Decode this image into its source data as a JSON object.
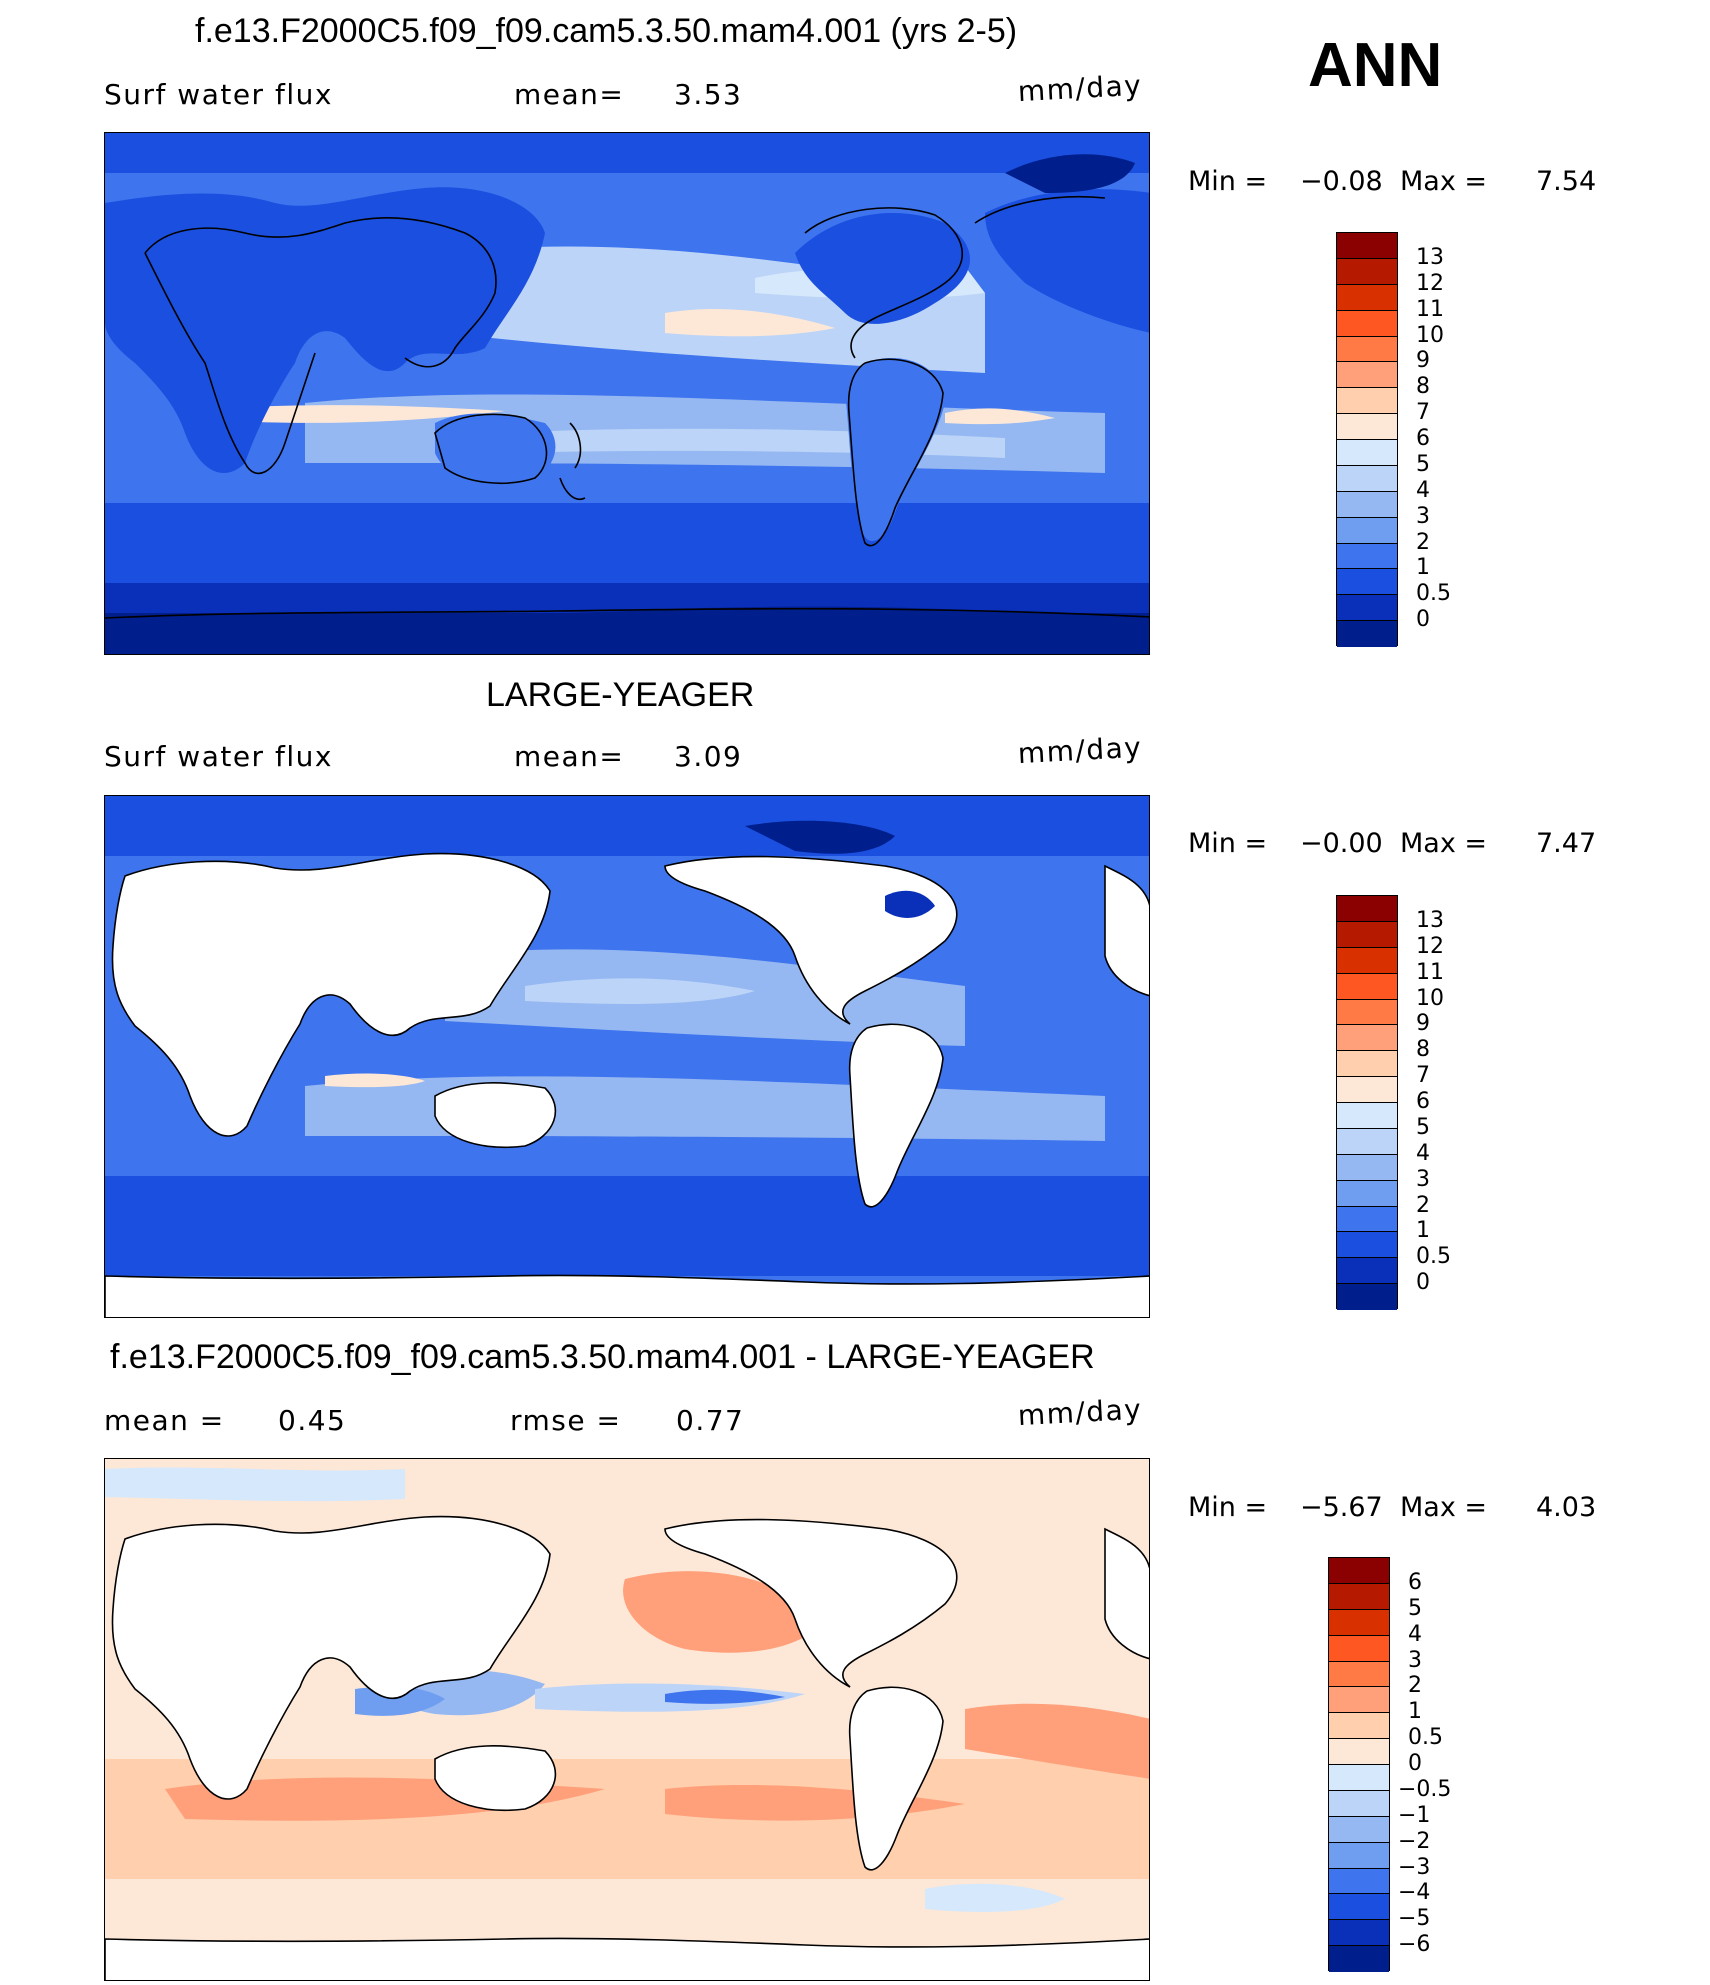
{
  "season": "ANN",
  "panels": [
    {
      "title": "f.e13.F2000C5.f09_f09.cam5.3.50.mam4.001 (yrs 2-5)",
      "left_label": "Surf water flux",
      "stat1_label": "mean=",
      "stat1_value": "3.53",
      "stat2_label": "",
      "stat2_value": "",
      "units": "mm/day",
      "min_label": "Min =",
      "min_value": "−0.08",
      "max_label": "Max =",
      "max_value": "7.54",
      "colorbar_levels": [
        "13",
        "12",
        "11",
        "10",
        "9",
        "8",
        "7",
        "6",
        "5",
        "4",
        "3",
        "2",
        "1",
        "0.5",
        "0"
      ],
      "colorbar_colors": [
        "#8b0000",
        "#b51a00",
        "#d93000",
        "#ff5722",
        "#ff7a45",
        "#ffa07a",
        "#ffcfae",
        "#fde8d8",
        "#d6e8fb",
        "#bcd4f7",
        "#95b8f2",
        "#6f9df0",
        "#3e74ee",
        "#1a4fe0",
        "#0a2fb8",
        "#001e8c"
      ],
      "ocean_land": "filled"
    },
    {
      "title": "LARGE-YEAGER",
      "left_label": "Surf water flux",
      "stat1_label": "mean=",
      "stat1_value": "3.09",
      "stat2_label": "",
      "stat2_value": "",
      "units": "mm/day",
      "min_label": "Min =",
      "min_value": "−0.00",
      "max_label": "Max =",
      "max_value": "7.47",
      "colorbar_levels": [
        "13",
        "12",
        "11",
        "10",
        "9",
        "8",
        "7",
        "6",
        "5",
        "4",
        "3",
        "2",
        "1",
        "0.5",
        "0"
      ],
      "colorbar_colors": [
        "#8b0000",
        "#b51a00",
        "#d93000",
        "#ff5722",
        "#ff7a45",
        "#ffa07a",
        "#ffcfae",
        "#fde8d8",
        "#d6e8fb",
        "#bcd4f7",
        "#95b8f2",
        "#6f9df0",
        "#3e74ee",
        "#1a4fe0",
        "#0a2fb8",
        "#001e8c"
      ],
      "ocean_land": "ocean-only"
    },
    {
      "title": "f.e13.F2000C5.f09_f09.cam5.3.50.mam4.001 - LARGE-YEAGER",
      "left_label": "",
      "stat1_label": "mean =",
      "stat1_value": "0.45",
      "stat2_label": "rmse =",
      "stat2_value": "0.77",
      "units": "mm/day",
      "min_label": "Min =",
      "min_value": "−5.67",
      "max_label": "Max =",
      "max_value": "4.03",
      "colorbar_levels": [
        "6",
        "5",
        "4",
        "3",
        "2",
        "1",
        "0.5",
        "0",
        "−0.5",
        "−1",
        "−2",
        "−3",
        "−4",
        "−5",
        "−6"
      ],
      "colorbar_colors": [
        "#8b0000",
        "#b51a00",
        "#d93000",
        "#ff5722",
        "#ff7a45",
        "#ffa07a",
        "#ffcfae",
        "#fde8d8",
        "#d6e8fb",
        "#bcd4f7",
        "#95b8f2",
        "#6f9df0",
        "#3e74ee",
        "#1a4fe0",
        "#0a2fb8",
        "#001e8c"
      ],
      "ocean_land": "difference"
    }
  ]
}
